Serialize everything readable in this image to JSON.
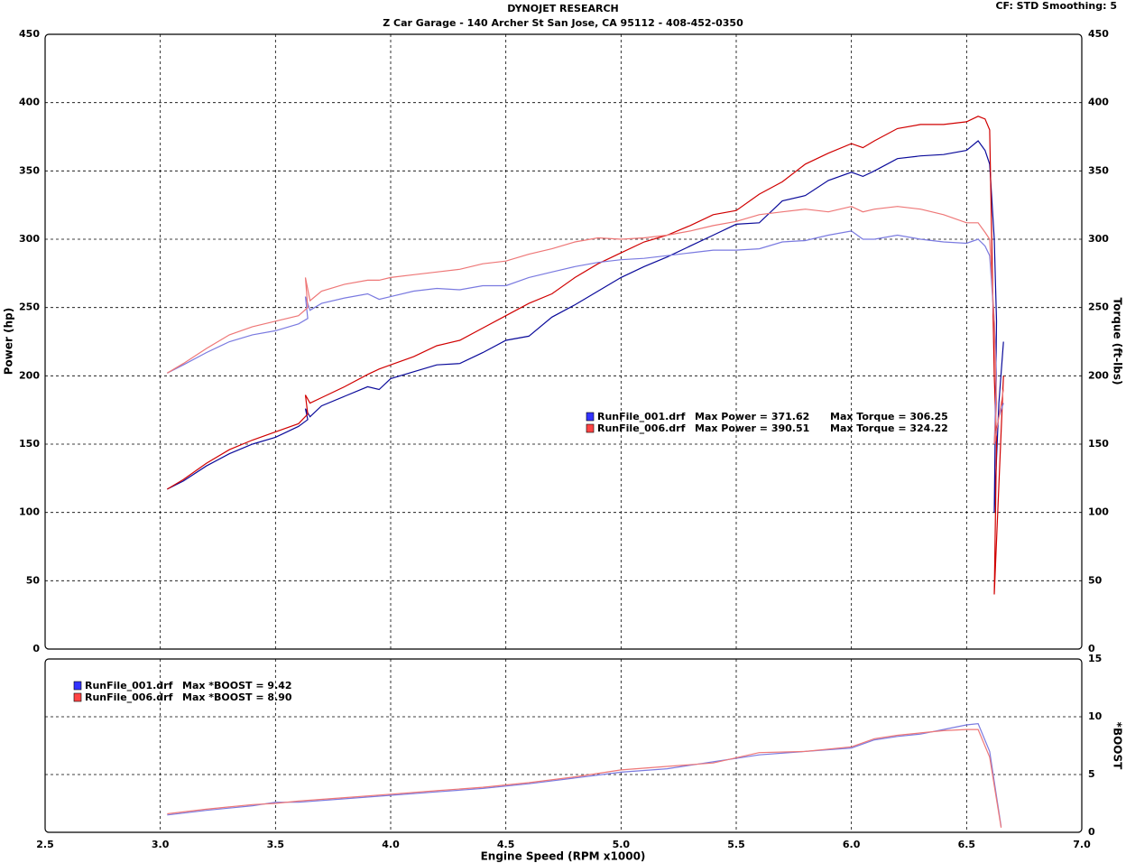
{
  "header": {
    "title": "DYNOJET RESEARCH",
    "subtitle": "Z Car Garage - 140 Archer St San Jose, CA 95112 - 408-452-0350",
    "settings": "CF: STD  Smoothing: 5"
  },
  "chart_data": [
    {
      "type": "line",
      "ylabel": "Power (hp)",
      "y2label": "Torque (ft-lbs)",
      "xlim": [
        2.5,
        7
      ],
      "xticks": [
        3,
        3.5,
        4,
        4.5,
        5,
        5.5,
        6,
        6.5
      ],
      "ylim": [
        0,
        450
      ],
      "yticks": [
        0,
        50,
        100,
        150,
        200,
        250,
        300,
        350,
        400,
        450
      ],
      "y2lim": [
        0,
        450
      ],
      "y2ticks": [
        0,
        50,
        100,
        150,
        200,
        250,
        300,
        350,
        400,
        450
      ],
      "grid": true,
      "legend": [
        {
          "name": "RunFile_001.drf",
          "color": "#3333ff",
          "text": "Max Power = 371.62",
          "text2": "Max Torque = 306.25"
        },
        {
          "name": "RunFile_006.drf",
          "color": "#ff4444",
          "text": "Max Power = 390.51",
          "text2": "Max Torque = 324.22"
        }
      ],
      "series": [
        {
          "color": "#0a0a9a",
          "axis": "y",
          "x": [
            3.03,
            3.1,
            3.2,
            3.3,
            3.4,
            3.5,
            3.6,
            3.64,
            3.63,
            3.65,
            3.7,
            3.8,
            3.9,
            3.95,
            4.0,
            4.1,
            4.2,
            4.3,
            4.4,
            4.5,
            4.6,
            4.7,
            4.8,
            4.9,
            5.0,
            5.1,
            5.2,
            5.3,
            5.4,
            5.5,
            5.6,
            5.7,
            5.8,
            5.9,
            6.0,
            6.05,
            6.1,
            6.2,
            6.3,
            6.4,
            6.5,
            6.55,
            6.58,
            6.6,
            6.62,
            6.63,
            6.62,
            6.64,
            6.66
          ],
          "values": [
            117,
            123,
            134,
            143,
            150,
            155,
            163,
            168,
            176,
            170,
            178,
            185,
            192,
            190,
            198,
            203,
            208,
            209,
            217,
            226,
            229,
            243,
            252,
            262,
            272,
            280,
            287,
            295,
            303,
            311,
            312,
            328,
            332,
            343,
            349,
            346,
            350,
            359,
            361,
            362,
            365,
            372,
            365,
            355,
            300,
            240,
            100,
            180,
            225
          ]
        },
        {
          "color": "#d00000",
          "axis": "y",
          "x": [
            3.03,
            3.1,
            3.2,
            3.3,
            3.4,
            3.5,
            3.6,
            3.64,
            3.63,
            3.65,
            3.7,
            3.8,
            3.9,
            3.95,
            4.0,
            4.1,
            4.2,
            4.3,
            4.4,
            4.5,
            4.6,
            4.7,
            4.8,
            4.9,
            5.0,
            5.1,
            5.2,
            5.3,
            5.4,
            5.5,
            5.6,
            5.7,
            5.8,
            5.9,
            6.0,
            6.05,
            6.1,
            6.2,
            6.3,
            6.4,
            6.5,
            6.55,
            6.58,
            6.6,
            6.62,
            6.63,
            6.62,
            6.64,
            6.66
          ],
          "values": [
            117,
            124,
            136,
            146,
            153,
            159,
            165,
            172,
            186,
            180,
            184,
            192,
            201,
            205,
            208,
            214,
            222,
            226,
            235,
            244,
            253,
            260,
            272,
            282,
            290,
            298,
            303,
            310,
            318,
            321,
            333,
            342,
            355,
            363,
            370,
            367,
            372,
            381,
            384,
            384,
            386,
            390,
            388,
            380,
            200,
            150,
            40,
            120,
            200
          ]
        },
        {
          "color": "#7a7ae0",
          "axis": "y2",
          "x": [
            3.03,
            3.1,
            3.2,
            3.3,
            3.4,
            3.5,
            3.6,
            3.64,
            3.63,
            3.65,
            3.7,
            3.8,
            3.9,
            3.95,
            4.0,
            4.1,
            4.2,
            4.3,
            4.4,
            4.5,
            4.6,
            4.7,
            4.8,
            4.9,
            5.0,
            5.1,
            5.2,
            5.3,
            5.4,
            5.5,
            5.6,
            5.7,
            5.8,
            5.9,
            6.0,
            6.05,
            6.1,
            6.2,
            6.3,
            6.4,
            6.5,
            6.55,
            6.58,
            6.6,
            6.62,
            6.63,
            6.62,
            6.64,
            6.66
          ],
          "values": [
            202,
            208,
            217,
            225,
            230,
            233,
            238,
            242,
            258,
            248,
            253,
            257,
            260,
            256,
            258,
            262,
            264,
            263,
            266,
            266,
            272,
            276,
            280,
            283,
            285,
            286,
            288,
            290,
            292,
            292,
            293,
            298,
            299,
            303,
            306,
            300,
            300,
            303,
            300,
            298,
            297,
            300,
            295,
            288,
            240,
            200,
            150,
            170,
            180
          ]
        },
        {
          "color": "#ee7777",
          "axis": "y2",
          "x": [
            3.03,
            3.1,
            3.2,
            3.3,
            3.4,
            3.5,
            3.6,
            3.64,
            3.63,
            3.65,
            3.7,
            3.8,
            3.9,
            3.95,
            4.0,
            4.1,
            4.2,
            4.3,
            4.4,
            4.5,
            4.6,
            4.7,
            4.8,
            4.9,
            5.0,
            5.1,
            5.2,
            5.3,
            5.4,
            5.5,
            5.6,
            5.7,
            5.8,
            5.9,
            6.0,
            6.05,
            6.1,
            6.2,
            6.3,
            6.4,
            6.5,
            6.55,
            6.58,
            6.6,
            6.62,
            6.63,
            6.62,
            6.64,
            6.66
          ],
          "values": [
            202,
            209,
            220,
            230,
            236,
            240,
            244,
            250,
            272,
            255,
            262,
            267,
            270,
            270,
            272,
            274,
            276,
            278,
            282,
            284,
            289,
            293,
            298,
            301,
            300,
            301,
            303,
            306,
            310,
            313,
            318,
            320,
            322,
            320,
            324,
            320,
            322,
            324,
            322,
            318,
            312,
            312,
            305,
            300,
            240,
            180,
            150,
            170,
            190
          ]
        }
      ]
    },
    {
      "type": "line",
      "xlabel": "Engine Speed (RPM x1000)",
      "y2label": "*BOOST",
      "xlim": [
        2.5,
        7
      ],
      "xticks": [
        2.5,
        {
          "value": 3,
          "label": "3.0"
        },
        3.5,
        {
          "value": 4,
          "label": "4.0"
        },
        4.5,
        {
          "value": 5,
          "label": "5.0"
        },
        5.5,
        {
          "value": 6,
          "label": "6.0"
        },
        6.5,
        {
          "value": 7,
          "label": "7.0"
        }
      ],
      "y2lim": [
        0,
        15
      ],
      "y2ticks": [
        0,
        5,
        10,
        15
      ],
      "grid": true,
      "legend": [
        {
          "name": "RunFile_001.drf",
          "color": "#3333ff",
          "text": "Max *BOOST = 9.42"
        },
        {
          "name": "RunFile_006.drf",
          "color": "#ff4444",
          "text": "Max *BOOST = 8.90"
        }
      ],
      "series": [
        {
          "color": "#7a7ae0",
          "axis": "y2",
          "x": [
            3.03,
            3.2,
            3.4,
            3.5,
            3.6,
            3.8,
            4.0,
            4.2,
            4.4,
            4.6,
            4.8,
            5.0,
            5.2,
            5.4,
            5.6,
            5.8,
            6.0,
            6.1,
            6.2,
            6.3,
            6.4,
            6.5,
            6.55,
            6.6,
            6.65
          ],
          "values": [
            1.5,
            1.9,
            2.3,
            2.6,
            2.6,
            2.9,
            3.2,
            3.5,
            3.8,
            4.2,
            4.7,
            5.2,
            5.5,
            6.1,
            6.7,
            7.0,
            7.3,
            8.0,
            8.3,
            8.5,
            8.9,
            9.3,
            9.4,
            7.0,
            0.5
          ]
        },
        {
          "color": "#ee7777",
          "axis": "y2",
          "x": [
            3.03,
            3.2,
            3.4,
            3.5,
            3.6,
            3.8,
            4.0,
            4.2,
            4.4,
            4.6,
            4.8,
            5.0,
            5.2,
            5.4,
            5.6,
            5.8,
            6.0,
            6.1,
            6.2,
            6.3,
            6.4,
            6.5,
            6.55,
            6.6,
            6.65
          ],
          "values": [
            1.6,
            2.0,
            2.4,
            2.5,
            2.7,
            3.0,
            3.3,
            3.6,
            3.9,
            4.3,
            4.8,
            5.4,
            5.7,
            6.0,
            6.9,
            7.0,
            7.4,
            8.1,
            8.4,
            8.6,
            8.8,
            8.9,
            8.9,
            6.5,
            0.4
          ]
        }
      ]
    }
  ]
}
